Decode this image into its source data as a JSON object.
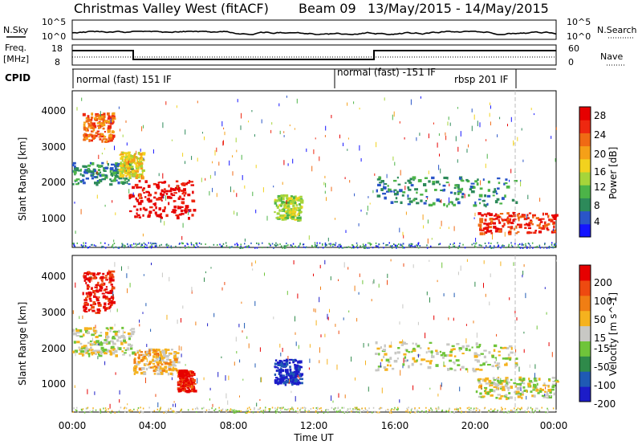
{
  "header": {
    "station": "Christmas Valley West (fitACF)",
    "beam": "Beam 09",
    "date_range": "13/May/2015 - 14/May/2015"
  },
  "noise_panel": {
    "left_label": "N.Sky",
    "right_label": "N.Search",
    "left_ticks": [
      "10^5",
      "10^0"
    ],
    "right_ticks": [
      "10^5",
      "10^0"
    ]
  },
  "freq_panel": {
    "left_label_1": "Freq.",
    "left_label_2": "[MHz]",
    "right_label": "Nave",
    "left_ticks": [
      "18",
      "8"
    ],
    "right_ticks": [
      "60",
      "0"
    ]
  },
  "cpid_panel": {
    "label": "CPID",
    "segments": [
      {
        "name": "normal (fast) 151 IF",
        "start_hour": 0,
        "end_hour": 13
      },
      {
        "name": "normal (fast) -151 IF",
        "start_hour": 13,
        "end_hour": 22
      },
      {
        "name": "rbsp 201 IF",
        "start_hour": 22,
        "end_hour": 24
      }
    ]
  },
  "chart_data": [
    {
      "type": "heatmap",
      "title": "",
      "xlabel": "",
      "ylabel": "Slant Range [km]",
      "xlim": [
        0,
        24
      ],
      "ylim": [
        200,
        4600
      ],
      "yticks": [
        "1000",
        "2000",
        "3000",
        "4000"
      ],
      "colorbar": {
        "label": "Power [dB]",
        "ticks": [
          "28",
          "24",
          "20",
          "16",
          "12",
          "8",
          "4"
        ],
        "colors": [
          "#1414ff",
          "#2a55c8",
          "#2d8a5a",
          "#4cb448",
          "#a6d53a",
          "#f2d21e",
          "#f5a018",
          "#f06a14",
          "#ee2810",
          "#e60000"
        ]
      },
      "echo_regions": [
        {
          "x": [
            0,
            3
          ],
          "y": [
            2000,
            2600
          ],
          "level": 2
        },
        {
          "x": [
            0.5,
            2
          ],
          "y": [
            3200,
            4000
          ],
          "level": 7
        },
        {
          "x": [
            2.8,
            6
          ],
          "y": [
            1050,
            2100
          ],
          "level": 9
        },
        {
          "x": [
            2.3,
            3.5
          ],
          "y": [
            2200,
            2900
          ],
          "level": 5
        },
        {
          "x": [
            10,
            11.3
          ],
          "y": [
            1000,
            1700
          ],
          "level": 4
        },
        {
          "x": [
            15,
            22
          ],
          "y": [
            1400,
            2200
          ],
          "level": 2
        },
        {
          "x": [
            20,
            24
          ],
          "y": [
            600,
            1200
          ],
          "level": 8
        }
      ]
    },
    {
      "type": "heatmap",
      "title": "",
      "xlabel": "Time UT",
      "ylabel": "Slant Range [km]",
      "xlim": [
        0,
        24
      ],
      "ylim": [
        200,
        4600
      ],
      "xticks": [
        "00:00",
        "04:00",
        "08:00",
        "12:00",
        "16:00",
        "20:00",
        "00:00"
      ],
      "yticks": [
        "1000",
        "2000",
        "3000",
        "4000"
      ],
      "colorbar": {
        "label": "Velocity [m s^-1]",
        "ticks": [
          "200",
          "100",
          "50",
          "15",
          "-15",
          "-50",
          "-100",
          "-200"
        ],
        "colors": [
          "#1c1cc8",
          "#1f5ab4",
          "#2f8a4a",
          "#6fc43a",
          "#c8c8c4",
          "#f5b21e",
          "#f07e14",
          "#ee4a10",
          "#e60000"
        ]
      },
      "echo_regions": [
        {
          "x": [
            0.5,
            2
          ],
          "y": [
            3000,
            4200
          ],
          "level": 8
        },
        {
          "x": [
            0,
            3
          ],
          "y": [
            1800,
            2600
          ],
          "level": 4
        },
        {
          "x": [
            3,
            5.2
          ],
          "y": [
            1300,
            2000
          ],
          "level": 5
        },
        {
          "x": [
            5.2,
            6
          ],
          "y": [
            800,
            1400
          ],
          "level": 8
        },
        {
          "x": [
            10,
            11.3
          ],
          "y": [
            1000,
            1700
          ],
          "level": 0
        },
        {
          "x": [
            15,
            22
          ],
          "y": [
            1400,
            2200
          ],
          "level": 4
        },
        {
          "x": [
            20,
            24
          ],
          "y": [
            600,
            1200
          ],
          "level": 4
        }
      ]
    }
  ]
}
